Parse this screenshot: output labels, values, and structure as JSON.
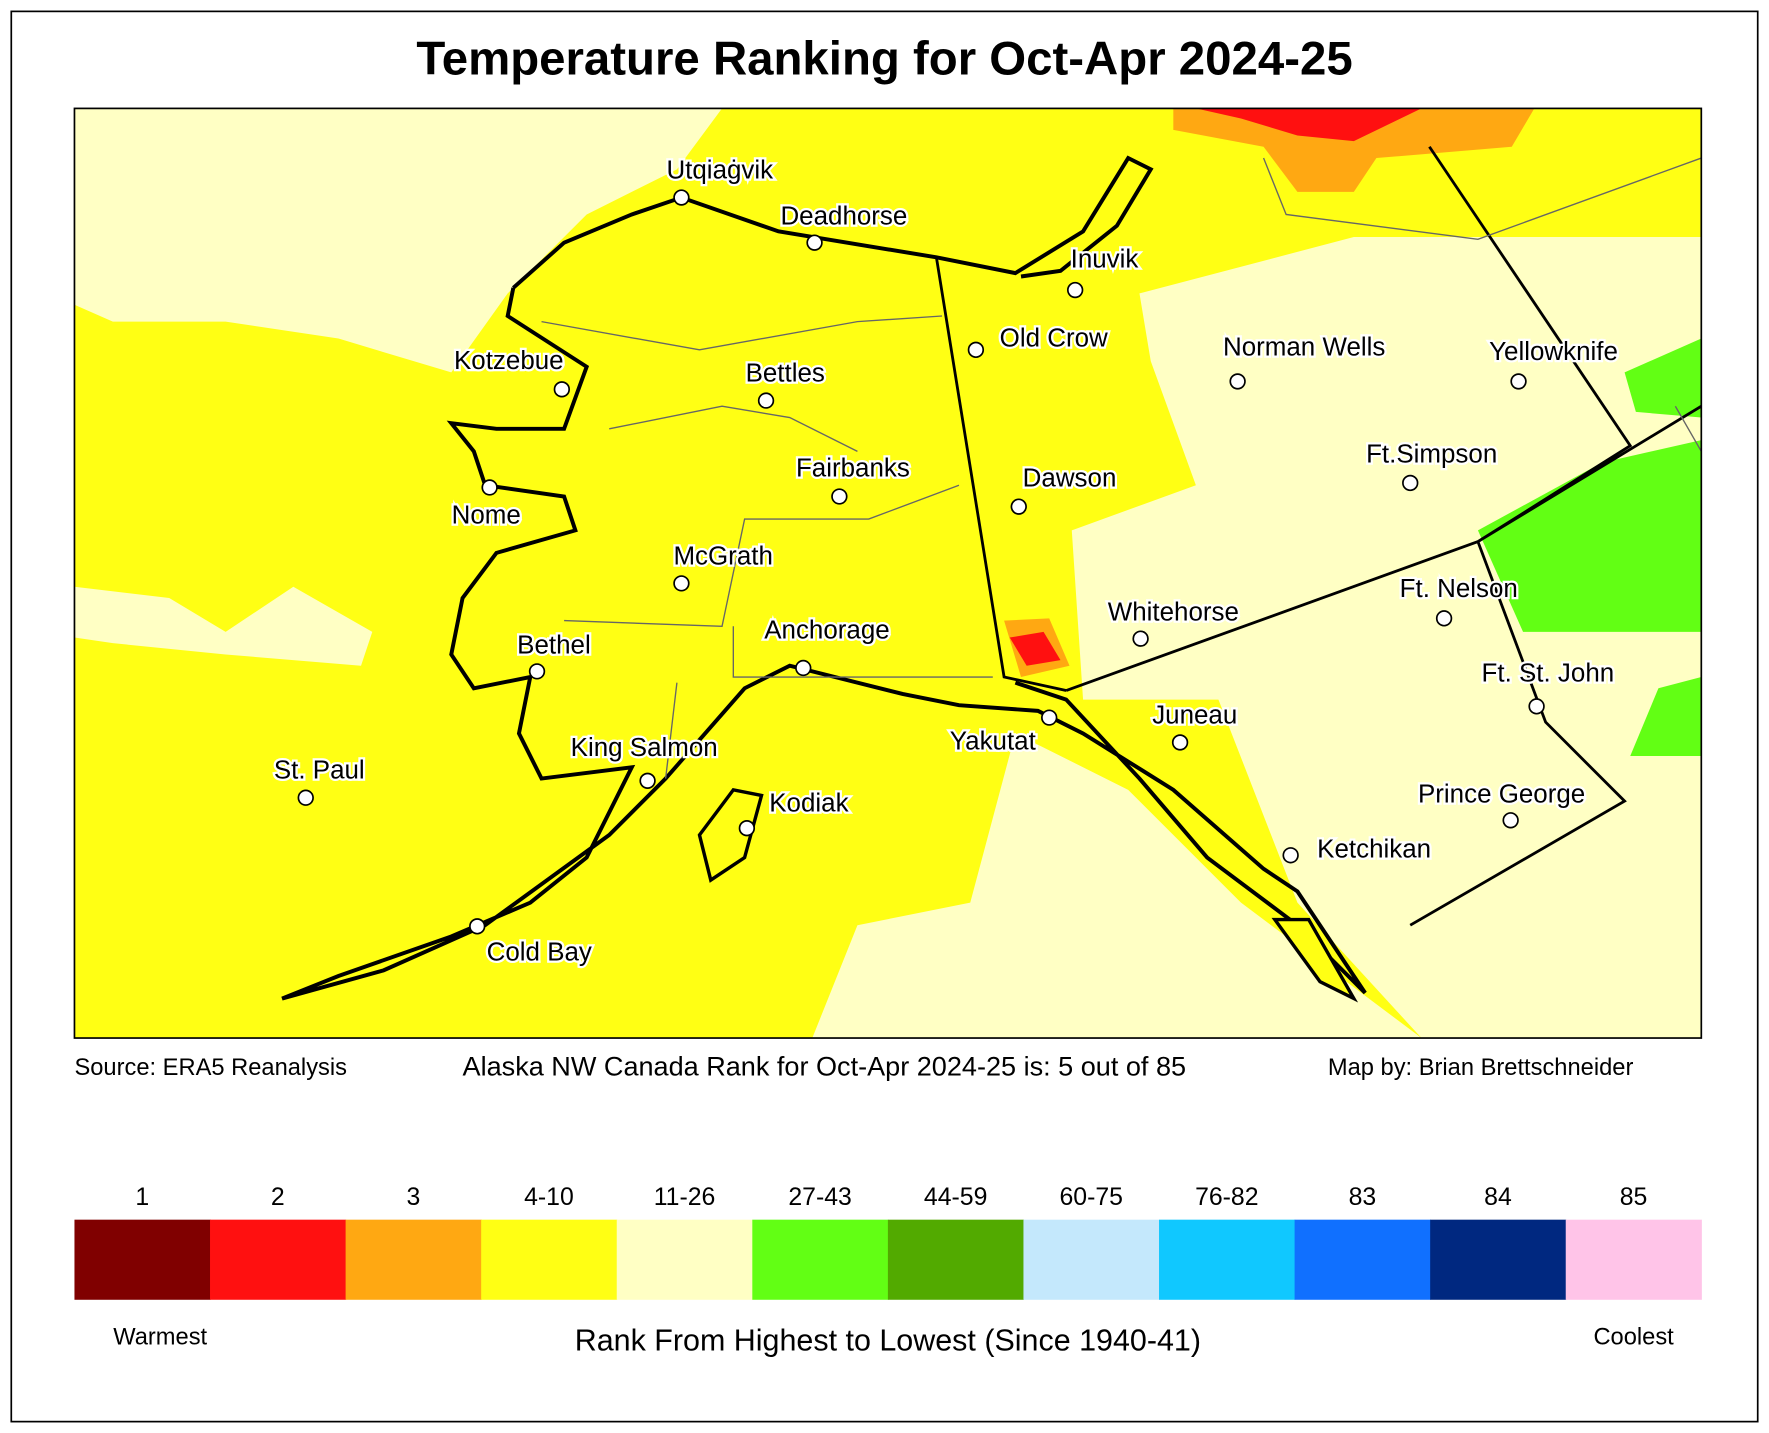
{
  "title": "Temperature Ranking for Oct-Apr 2024-25",
  "source": "Source: ERA5 Reanalysis",
  "rank_text": "Alaska NW Canada Rank for Oct-Apr 2024-25 is: 5 out of 85",
  "credit": "Map by: Brian Brettschneider",
  "cities": [
    "Utqiaġvik",
    "Deadhorse",
    "Inuvik",
    "Old Crow",
    "Kotzebue",
    "Bettles",
    "Norman Wells",
    "Yellowknife",
    "Nome",
    "Fairbanks",
    "Dawson",
    "Ft.Simpson",
    "McGrath",
    "Whitehorse",
    "Ft. Nelson",
    "Bethel",
    "Anchorage",
    "Ft. St. John",
    "Yakutat",
    "Juneau",
    "King Salmon",
    "St. Paul",
    "Kodiak",
    "Prince George",
    "Ketchikan",
    "Cold Bay"
  ],
  "legend": {
    "items": [
      {
        "label": "1",
        "color": "#800000"
      },
      {
        "label": "2",
        "color": "#ff1010"
      },
      {
        "label": "3",
        "color": "#ffa812"
      },
      {
        "label": "4-10",
        "color": "#ffff14"
      },
      {
        "label": "11-26",
        "color": "#ffffc4"
      },
      {
        "label": "27-43",
        "color": "#62ff14"
      },
      {
        "label": "44-59",
        "color": "#52aa00"
      },
      {
        "label": "60-75",
        "color": "#c4e8fc"
      },
      {
        "label": "76-82",
        "color": "#10c8ff"
      },
      {
        "label": "83",
        "color": "#1070ff"
      },
      {
        "label": "84",
        "color": "#002880"
      },
      {
        "label": "85",
        "color": "#ffc4e8"
      }
    ],
    "warm_label": "Warmest",
    "cool_label": "Coolest",
    "caption": "Rank From Highest to Lowest (Since 1940-41)"
  }
}
